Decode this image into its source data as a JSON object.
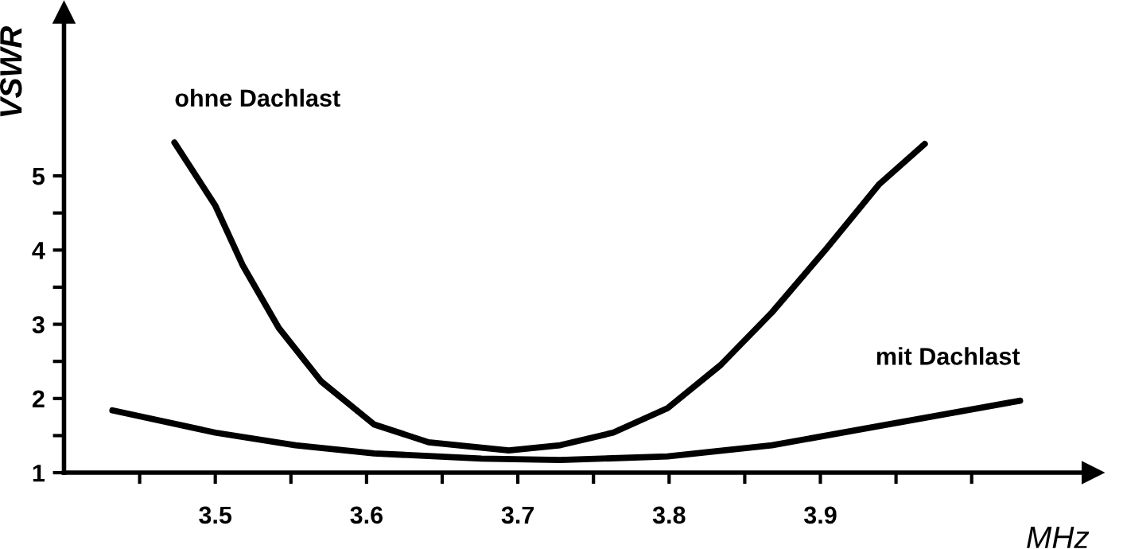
{
  "chart_data": {
    "type": "line",
    "xlabel": "MHz",
    "ylabel": "VSWR",
    "xlim": [
      3.4,
      4.08
    ],
    "ylim": [
      1,
      7.2
    ],
    "xticks": [
      {
        "value": 3.45,
        "label": null
      },
      3.5,
      {
        "value": 3.55,
        "label": null
      },
      3.6,
      {
        "value": 3.65,
        "label": null
      },
      3.7,
      {
        "value": 3.75,
        "label": null
      },
      3.8,
      {
        "value": 3.85,
        "label": null
      },
      3.9,
      {
        "value": 3.95,
        "label": null
      },
      {
        "value": 4.0,
        "label": null
      }
    ],
    "yticks": [
      1,
      {
        "value": 1.5,
        "label": null
      },
      2,
      {
        "value": 2.5,
        "label": null
      },
      3,
      {
        "value": 3.5,
        "label": null
      },
      4,
      {
        "value": 4.5,
        "label": null
      },
      5
    ],
    "grid": false,
    "legend": false,
    "marker": "none",
    "line_style": "solid",
    "series": [
      {
        "name": "ohne Dachlast",
        "color": "#000000",
        "x": [
          3.473,
          3.5,
          3.518,
          3.542,
          3.57,
          3.605,
          3.641,
          3.694,
          3.728,
          3.763,
          3.799,
          3.834,
          3.868,
          3.904,
          3.939,
          3.969
        ],
        "values": [
          5.45,
          4.6,
          3.8,
          2.95,
          2.23,
          1.65,
          1.41,
          1.3,
          1.37,
          1.54,
          1.87,
          2.45,
          3.16,
          4.02,
          4.89,
          5.43
        ]
      },
      {
        "name": "mit Dachlast",
        "color": "#000000",
        "x": [
          3.432,
          3.5,
          3.553,
          3.605,
          3.676,
          3.728,
          3.799,
          3.868,
          3.939,
          4.032
        ],
        "values": [
          1.84,
          1.54,
          1.37,
          1.26,
          1.19,
          1.17,
          1.22,
          1.37,
          1.63,
          1.97
        ]
      }
    ]
  }
}
